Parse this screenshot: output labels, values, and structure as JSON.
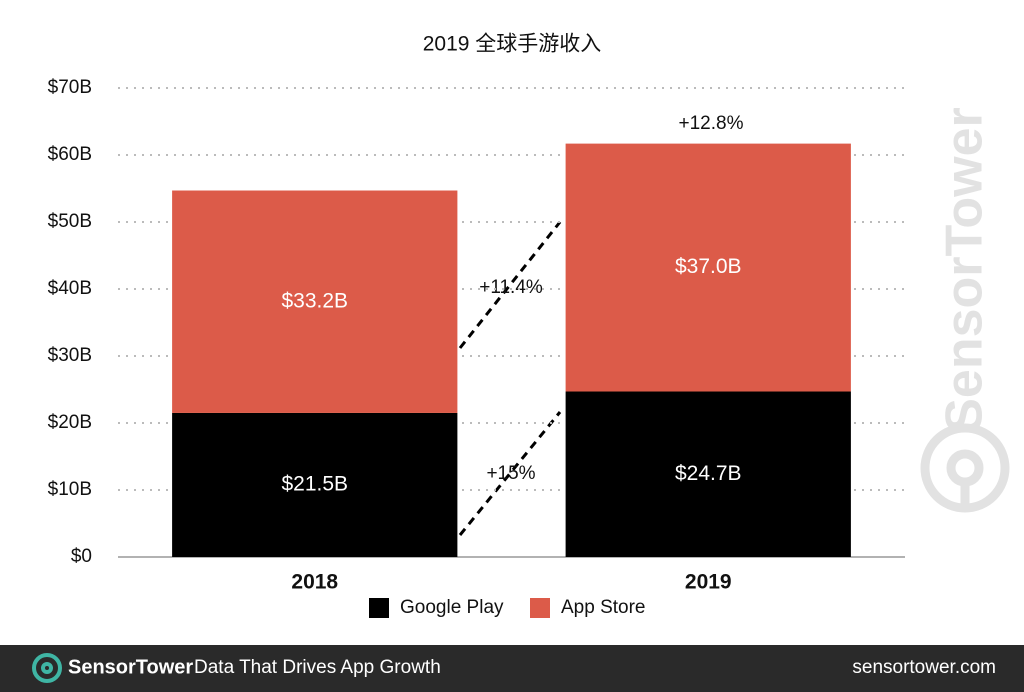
{
  "chart_data": {
    "type": "stacked-bar",
    "title": "2019 全球手游收入",
    "categories": [
      "2018",
      "2019"
    ],
    "series": [
      {
        "name": "Google Play",
        "color": "#000000",
        "values": [
          21.5,
          24.7
        ],
        "value_labels": [
          "$21.5B",
          "$24.7B"
        ]
      },
      {
        "name": "App Store",
        "color": "#dc5b49",
        "values": [
          33.2,
          37.0
        ],
        "value_labels": [
          "$33.2B",
          "$37.0B"
        ]
      }
    ],
    "ylim": [
      0,
      70
    ],
    "yticks": [
      {
        "value": 0,
        "label": "$0"
      },
      {
        "value": 10,
        "label": "$10B"
      },
      {
        "value": 20,
        "label": "$20B"
      },
      {
        "value": 30,
        "label": "$30B"
      },
      {
        "value": 40,
        "label": "$40B"
      },
      {
        "value": 50,
        "label": "$50B"
      },
      {
        "value": 60,
        "label": "$60B"
      },
      {
        "value": 70,
        "label": "$70B"
      }
    ],
    "grid": true,
    "annotations": [
      "+12.8%",
      "+11.4%",
      "+15%"
    ]
  },
  "watermark": "SensorTower",
  "footer": {
    "brand": "SensorTower",
    "tagline": "Data That Drives App Growth",
    "url": "sensortower.com"
  }
}
